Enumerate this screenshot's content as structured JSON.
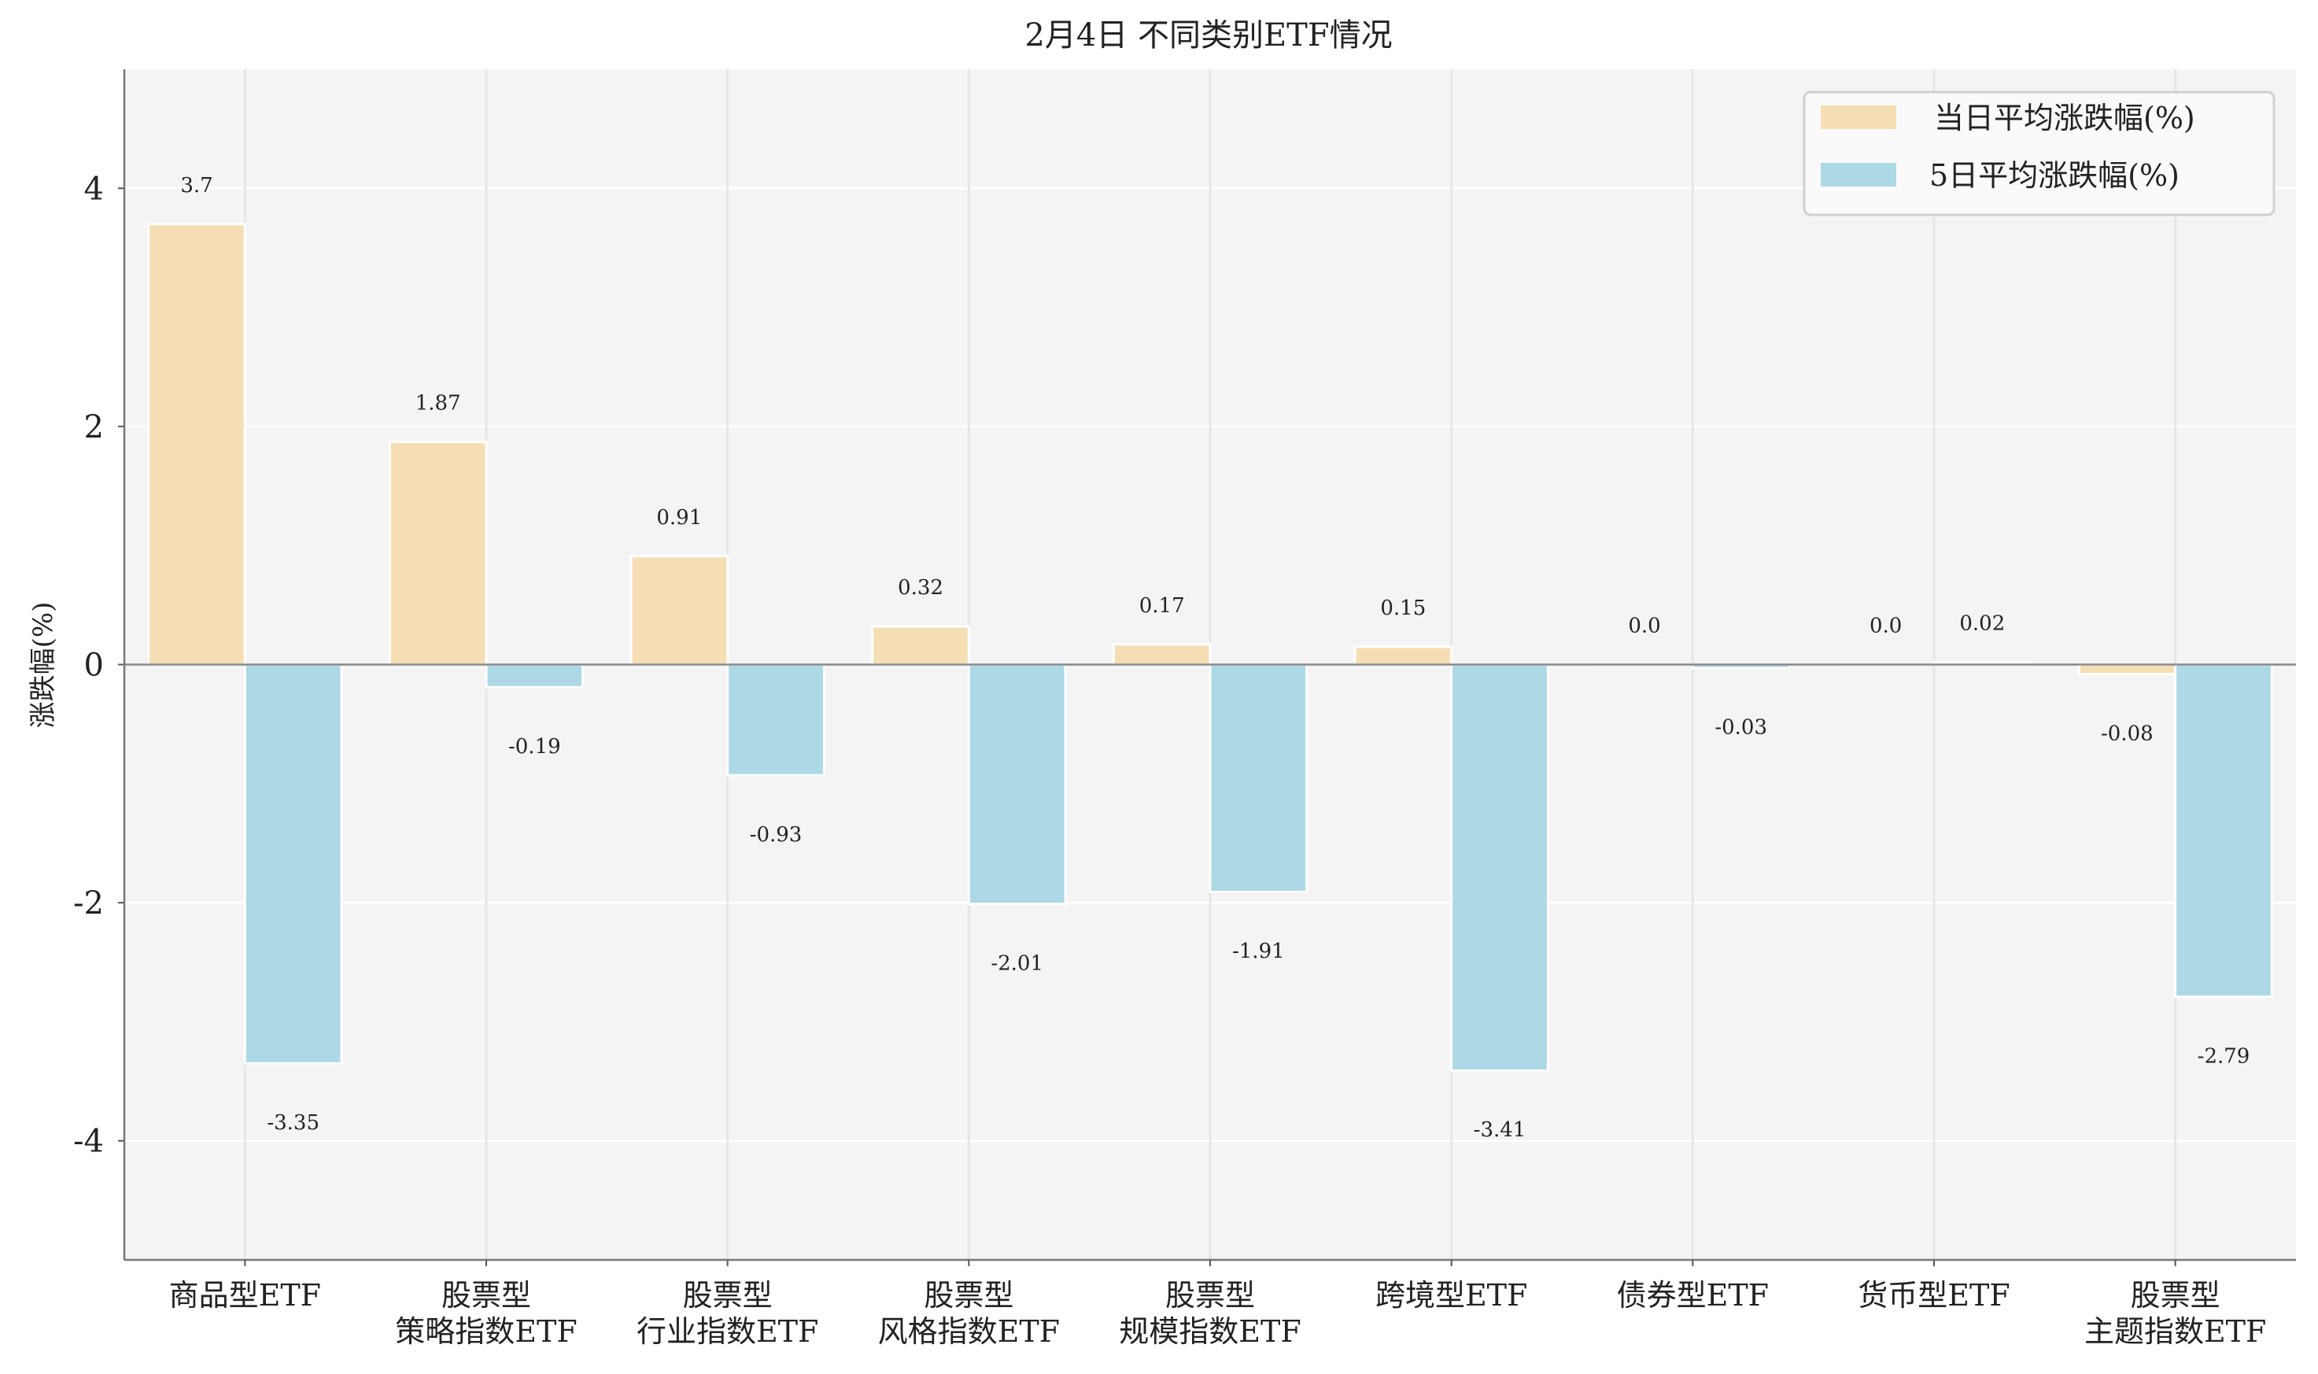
{
  "chart_data": {
    "type": "bar",
    "title": "2月4日 不同类别ETF情况",
    "xlabel": "",
    "ylabel": "涨跌幅(%)",
    "ylim": [
      -5,
      5
    ],
    "yticks": [
      -4,
      -2,
      0,
      2,
      4
    ],
    "ytick_labels": [
      "-4",
      "-2",
      "0",
      "2",
      "4"
    ],
    "grid": true,
    "legend_position": "top-right",
    "categories": [
      [
        "商品型ETF"
      ],
      [
        "股票型",
        "策略指数ETF"
      ],
      [
        "股票型",
        "行业指数ETF"
      ],
      [
        "股票型",
        "风格指数ETF"
      ],
      [
        "股票型",
        "规模指数ETF"
      ],
      [
        "跨境型ETF"
      ],
      [
        "债券型ETF"
      ],
      [
        "货币型ETF"
      ],
      [
        "股票型",
        "主题指数ETF"
      ]
    ],
    "series": [
      {
        "name": "当日平均涨跌幅(%)",
        "color": "#f5deb3",
        "values": [
          3.7,
          1.87,
          0.91,
          0.32,
          0.17,
          0.15,
          0.0,
          0.0,
          -0.08
        ],
        "labels": [
          "3.7",
          "1.87",
          "0.91",
          "0.32",
          "0.17",
          "0.15",
          "0.0",
          "0.0",
          "-0.08"
        ]
      },
      {
        "name": "5日平均涨跌幅(%)",
        "color": "#add8e6",
        "values": [
          -3.35,
          -0.19,
          -0.93,
          -2.01,
          -1.91,
          -3.41,
          -0.03,
          0.02,
          -2.79
        ],
        "labels": [
          "-3.35",
          "-0.19",
          "-0.93",
          "-2.01",
          "-1.91",
          "-3.41",
          "-0.03",
          "0.02",
          "-2.79"
        ]
      }
    ]
  }
}
